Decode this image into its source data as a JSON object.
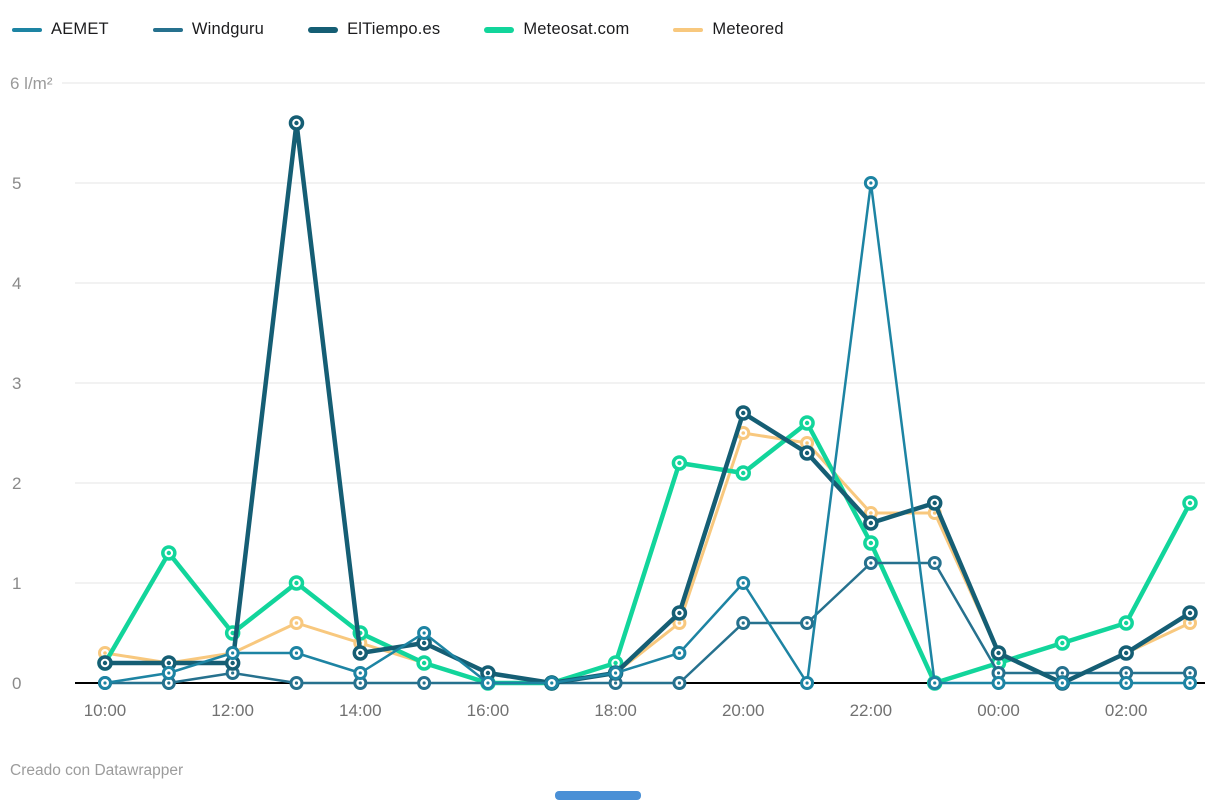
{
  "legend": {
    "items": [
      {
        "label": "AEMET",
        "color": "#1d84a3"
      },
      {
        "label": "Windguru",
        "color": "#26718e"
      },
      {
        "label": "ElTiempo.es",
        "color": "#155e74"
      },
      {
        "label": "Meteosat.com",
        "color": "#12d59b"
      },
      {
        "label": "Meteored",
        "color": "#f8c87e"
      }
    ]
  },
  "chart_data": {
    "type": "line",
    "title": "",
    "unit_label": "6 l/m²",
    "unit": "l/m²",
    "x": [
      "10:00",
      "11:00",
      "12:00",
      "13:00",
      "14:00",
      "15:00",
      "16:00",
      "17:00",
      "18:00",
      "19:00",
      "20:00",
      "21:00",
      "22:00",
      "23:00",
      "00:00",
      "01:00",
      "02:00",
      "03:00"
    ],
    "x_axis_tick_labels": [
      "10:00",
      "12:00",
      "14:00",
      "16:00",
      "18:00",
      "20:00",
      "22:00",
      "00:00",
      "02:00"
    ],
    "y_ticks": [
      0,
      1,
      2,
      3,
      4,
      5
    ],
    "ylim": [
      0,
      6
    ],
    "grid": "horizontal",
    "legend_position": "top-left",
    "series": [
      {
        "name": "AEMET",
        "color": "#1d84a3",
        "values": [
          0,
          0.1,
          0.3,
          0.3,
          0.1,
          0.5,
          0,
          0,
          0.1,
          0.3,
          1,
          0,
          5,
          0,
          0,
          0,
          0,
          0
        ]
      },
      {
        "name": "Windguru",
        "color": "#26718e",
        "values": [
          0,
          0,
          0.1,
          0,
          0,
          0,
          0,
          0,
          0,
          0,
          0.6,
          0.6,
          1.2,
          1.2,
          0.1,
          0.1,
          0.1,
          0.1
        ]
      },
      {
        "name": "ElTiempo.es",
        "color": "#155e74",
        "values": [
          0.2,
          0.2,
          0.2,
          5.6,
          0.3,
          0.4,
          0.1,
          0,
          0.1,
          0.7,
          2.7,
          2.3,
          1.6,
          1.8,
          0.3,
          0,
          0.3,
          0.7
        ]
      },
      {
        "name": "Meteosat.com",
        "color": "#12d59b",
        "values": [
          0.2,
          1.3,
          0.5,
          1,
          0.5,
          0.2,
          0,
          0,
          0.2,
          2.2,
          2.1,
          2.6,
          1.4,
          0,
          0.2,
          0.4,
          0.6,
          1.8
        ]
      },
      {
        "name": "Meteored",
        "color": "#f8c87e",
        "values": [
          0.3,
          0.2,
          0.3,
          0.6,
          0.4,
          0.2,
          0,
          0,
          0.1,
          0.6,
          2.5,
          2.4,
          1.7,
          1.7,
          0.3,
          0,
          0.3,
          0.6
        ]
      }
    ]
  },
  "footer": {
    "credit": "Creado con Datawrapper"
  },
  "scrollbar": {
    "color": "#4a90d6"
  }
}
